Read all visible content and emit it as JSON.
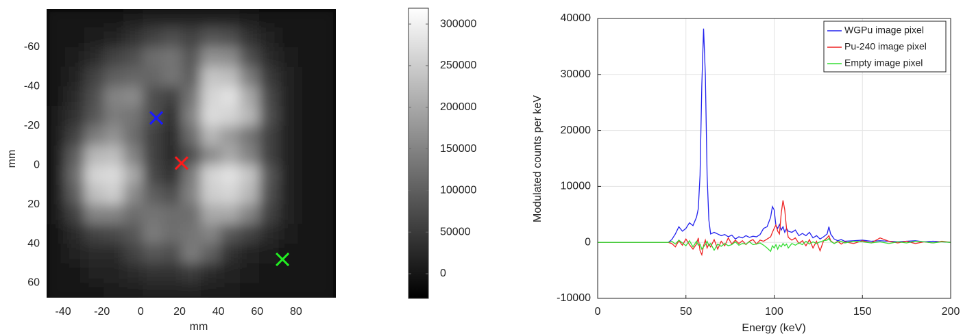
{
  "chart_data": [
    {
      "type": "heatmap",
      "x_label": "mm",
      "y_label": "mm",
      "colormap": "gray",
      "y_reversed": true,
      "xlim": [
        -48.5,
        100.5
      ],
      "ylim": [
        -79.5,
        67.5
      ],
      "xticks": [
        -40,
        -20,
        0,
        20,
        40,
        60,
        80
      ],
      "yticks": [
        -60,
        -40,
        -20,
        0,
        20,
        40,
        60
      ],
      "x": [
        -44,
        -34,
        -24,
        -14,
        -4,
        6,
        16,
        26,
        36,
        46,
        56,
        66,
        76,
        86,
        96
      ],
      "y": [
        -75,
        -65,
        -55,
        -45,
        -35,
        -25,
        -15,
        -5,
        5,
        15,
        25,
        35,
        45,
        55,
        65
      ],
      "values": [
        [
          0,
          0,
          5000,
          5000,
          10000,
          15000,
          15000,
          20000,
          20000,
          15000,
          10000,
          5000,
          5000,
          0,
          0
        ],
        [
          0,
          5000,
          10000,
          20000,
          40000,
          60000,
          80000,
          60000,
          90000,
          80000,
          40000,
          20000,
          5000,
          0,
          0
        ],
        [
          0,
          10000,
          30000,
          60000,
          80000,
          120000,
          130000,
          90000,
          170000,
          160000,
          80000,
          30000,
          10000,
          5000,
          0
        ],
        [
          5000,
          20000,
          60000,
          100000,
          110000,
          110000,
          130000,
          100000,
          240000,
          230000,
          140000,
          50000,
          15000,
          5000,
          0
        ],
        [
          5000,
          30000,
          80000,
          150000,
          160000,
          80000,
          60000,
          130000,
          260000,
          280000,
          200000,
          70000,
          20000,
          5000,
          0
        ],
        [
          10000,
          40000,
          90000,
          140000,
          130000,
          80000,
          40000,
          150000,
          270000,
          260000,
          220000,
          80000,
          20000,
          5000,
          0
        ],
        [
          10000,
          60000,
          140000,
          170000,
          120000,
          60000,
          30000,
          120000,
          220000,
          180000,
          130000,
          60000,
          20000,
          5000,
          0
        ],
        [
          10000,
          100000,
          220000,
          230000,
          150000,
          60000,
          30000,
          80000,
          160000,
          200000,
          150000,
          60000,
          20000,
          5000,
          0
        ],
        [
          10000,
          120000,
          260000,
          270000,
          200000,
          70000,
          40000,
          140000,
          260000,
          280000,
          240000,
          90000,
          20000,
          5000,
          0
        ],
        [
          10000,
          100000,
          230000,
          250000,
          160000,
          100000,
          80000,
          150000,
          250000,
          260000,
          220000,
          80000,
          20000,
          5000,
          0
        ],
        [
          10000,
          60000,
          150000,
          150000,
          120000,
          130000,
          120000,
          120000,
          200000,
          200000,
          150000,
          60000,
          15000,
          5000,
          0
        ],
        [
          5000,
          30000,
          60000,
          70000,
          90000,
          140000,
          120000,
          130000,
          150000,
          90000,
          60000,
          30000,
          10000,
          0,
          0
        ],
        [
          5000,
          15000,
          30000,
          30000,
          60000,
          90000,
          80000,
          140000,
          100000,
          40000,
          20000,
          10000,
          5000,
          0,
          0
        ],
        [
          0,
          5000,
          15000,
          20000,
          30000,
          40000,
          40000,
          50000,
          30000,
          20000,
          10000,
          5000,
          0,
          0,
          0
        ],
        [
          0,
          0,
          5000,
          10000,
          10000,
          15000,
          15000,
          15000,
          10000,
          10000,
          5000,
          0,
          0,
          0,
          0
        ]
      ],
      "clim": [
        -29600,
        319000
      ],
      "cticks": [
        0,
        50000,
        100000,
        150000,
        200000,
        250000,
        300000
      ],
      "marker": "x",
      "markers": [
        {
          "color": "#1a1aff",
          "x": 8,
          "y": -24
        },
        {
          "color": "#ff1a1a",
          "x": 21,
          "y": -1
        },
        {
          "color": "#22ee22",
          "x": 73,
          "y": 48
        }
      ]
    },
    {
      "type": "line",
      "x_label": "Energy (keV)",
      "y_label": "Modulated counts per keV",
      "xlim": [
        0,
        200
      ],
      "ylim": [
        -10000,
        40000
      ],
      "xticks": [
        0,
        50,
        100,
        150,
        200
      ],
      "yticks": [
        -10000,
        0,
        10000,
        20000,
        30000,
        40000
      ],
      "grid": true,
      "legend": "top-right",
      "x": [
        0,
        10,
        20,
        30,
        40,
        42,
        44,
        46,
        48,
        50,
        52,
        54,
        56,
        57,
        58,
        59,
        60,
        61,
        62,
        63,
        64,
        66,
        68,
        70,
        72,
        74,
        76,
        78,
        80,
        82,
        84,
        86,
        88,
        90,
        92,
        94,
        96,
        98,
        99,
        100,
        101,
        102,
        103,
        104,
        105,
        106,
        107,
        108,
        110,
        112,
        114,
        116,
        118,
        120,
        122,
        124,
        126,
        128,
        130,
        131,
        132,
        134,
        136,
        138,
        140,
        145,
        150,
        155,
        160,
        165,
        170,
        175,
        180,
        185,
        190,
        195,
        200
      ],
      "series": [
        {
          "name": "WGPu image pixel",
          "color": "#2222ee",
          "values": [
            0,
            0,
            0,
            0,
            0,
            500,
            1500,
            2800,
            2000,
            2500,
            3500,
            3000,
            4500,
            6000,
            12000,
            28000,
            38200,
            30000,
            12000,
            4000,
            1500,
            1800,
            1500,
            1200,
            1400,
            1000,
            1300,
            600,
            1000,
            800,
            1200,
            900,
            1100,
            1000,
            1400,
            2500,
            2800,
            4500,
            6400,
            5800,
            3000,
            2500,
            3200,
            2200,
            2800,
            1800,
            2500,
            2000,
            1800,
            2200,
            1200,
            1600,
            1200,
            1800,
            800,
            1200,
            600,
            1000,
            1500,
            2800,
            1500,
            600,
            300,
            500,
            200,
            300,
            400,
            200,
            300,
            200,
            100,
            200,
            300,
            100,
            200,
            100,
            0
          ]
        },
        {
          "name": "Pu-240 image pixel",
          "color": "#ee2222",
          "values": [
            0,
            0,
            0,
            0,
            0,
            -200,
            -800,
            300,
            -500,
            600,
            -400,
            -1200,
            -300,
            800,
            -1500,
            -2200,
            -600,
            400,
            -1000,
            -300,
            -800,
            500,
            -1200,
            200,
            -600,
            800,
            -300,
            400,
            -200,
            300,
            -400,
            200,
            500,
            -300,
            400,
            200,
            600,
            1000,
            1800,
            2500,
            3100,
            2000,
            1500,
            5200,
            7500,
            5800,
            2500,
            900,
            400,
            800,
            -200,
            300,
            -600,
            500,
            -1000,
            200,
            -1500,
            300,
            800,
            1200,
            300,
            -200,
            200,
            -300,
            100,
            -200,
            300,
            -100,
            800,
            200,
            -100,
            200,
            -200,
            100,
            -100,
            200,
            0
          ]
        },
        {
          "name": "Empty image pixel",
          "color": "#33dd33",
          "values": [
            0,
            0,
            0,
            0,
            0,
            200,
            -300,
            400,
            -100,
            -600,
            300,
            -800,
            200,
            -500,
            -300,
            -1200,
            -800,
            -400,
            200,
            -600,
            -200,
            -1400,
            -300,
            -700,
            -200,
            -600,
            -400,
            100,
            -500,
            -200,
            -300,
            100,
            -400,
            -300,
            -100,
            -500,
            -1000,
            -1600,
            -600,
            -1000,
            -400,
            -1200,
            -500,
            -800,
            -200,
            -600,
            -300,
            -1000,
            -200,
            -500,
            -100,
            -400,
            200,
            -300,
            100,
            -200,
            100,
            300,
            400,
            700,
            200,
            -200,
            100,
            200,
            -100,
            200,
            100,
            -100,
            100,
            -200,
            100,
            -100,
            200,
            100,
            -100,
            100,
            0
          ]
        }
      ]
    }
  ]
}
